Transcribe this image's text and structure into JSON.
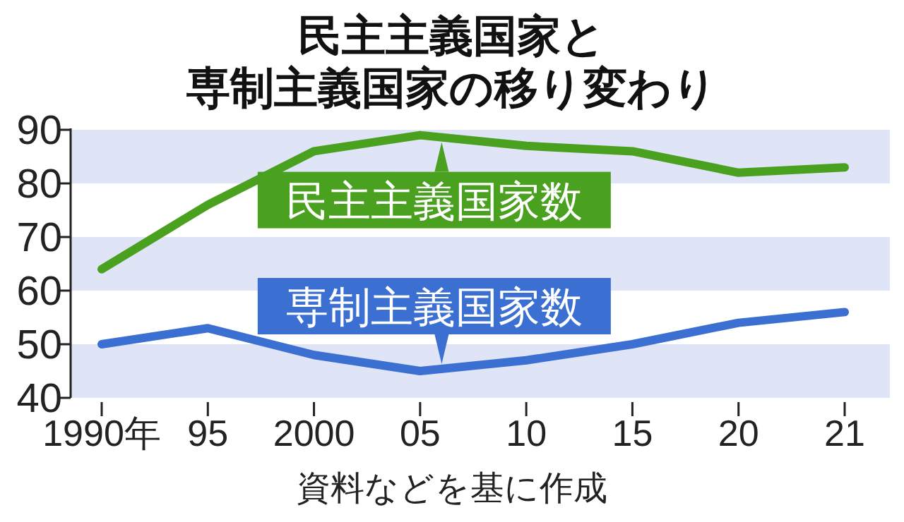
{
  "chart_data": {
    "type": "line",
    "title": "民主主義国家と専制主義国家の移り変わり",
    "categories": [
      "1990年",
      "95",
      "2000",
      "05",
      "10",
      "15",
      "20",
      "21"
    ],
    "series": [
      {
        "name": "民主主義国家数",
        "color": "#4aa01f",
        "values": [
          64,
          76,
          86,
          89,
          87,
          86,
          82,
          83
        ]
      },
      {
        "name": "専制主義国家数",
        "color": "#3b6fd2",
        "values": [
          50,
          53,
          48,
          45,
          47,
          50,
          54,
          56
        ]
      }
    ],
    "ylim": [
      40,
      90
    ],
    "yticks": [
      40,
      50,
      60,
      70,
      80,
      90
    ],
    "bands": [
      {
        "axis": "y",
        "from": 80,
        "to": 90,
        "color": "#dfe4f6"
      },
      {
        "axis": "y",
        "from": 60,
        "to": 70,
        "color": "#dfe4f6"
      },
      {
        "axis": "y",
        "from": 40,
        "to": 50,
        "color": "#dfe4f6"
      }
    ],
    "grid": false,
    "legend": "center",
    "marker": "none",
    "line_style": "solid",
    "annotations": [
      "資料などを基に作成"
    ]
  }
}
